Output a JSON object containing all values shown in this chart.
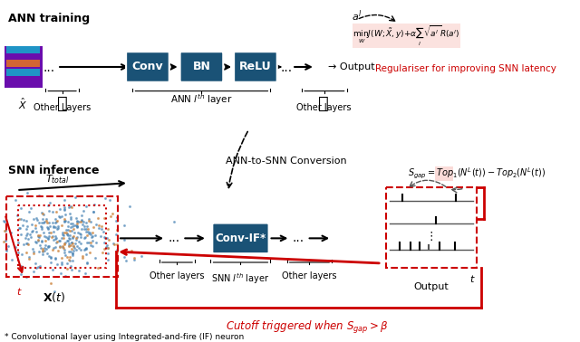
{
  "title_ann": "ANN training",
  "title_snn": "SNN inference",
  "ann_box_color": "#1a5276",
  "ann_box_labels": [
    "Conv",
    "BN",
    "ReLU"
  ],
  "snn_box_color": "#1a5276",
  "snn_box_label": "Conv-IF*",
  "highlight_color": "#f1948a",
  "highlight_bg": "#fadbd8",
  "arrow_color": "black",
  "red_color": "#cc0000",
  "text_color": "black",
  "gray_color": "#555555",
  "ann_image_colors": [
    "#6a0dad",
    "#00ced1",
    "#ff8c00"
  ],
  "cutoff_text": "Cutoff triggered when $S_{gap} > \\beta$",
  "footnote": "* Convolutional layer using Integrated-and-fire (IF) neuron",
  "regulariser_text": "Regulariser for improving SNN latency",
  "ann_to_snn_text": "ANN-to-SNN Conversion",
  "formula_reg": "$\\min_W J(W;\\tilde{X},y) + \\alpha \\sum_l \\sqrt{a^l} R(a^l)$",
  "formula_sgap": "$S_{gap} = Top_1(N^L(t)) - Top_2(N^L(t))$",
  "label_al": "$a^l$",
  "label_ttotal": "$T_{total}$",
  "label_t_snn": "$t$",
  "label_xhat": "$\\hat{X}$",
  "label_xt": "$\\mathbf{X}(t)$",
  "label_output1": "Output",
  "label_output2": "Output",
  "label_other1": "Other Layers",
  "label_ann_layer": "ANN $l^{th}$ layer",
  "label_other2": "Other layers",
  "label_other3": "Other layers",
  "label_snn_layer": "SNN $l^{th}$ layer",
  "label_other4": "Other layers"
}
